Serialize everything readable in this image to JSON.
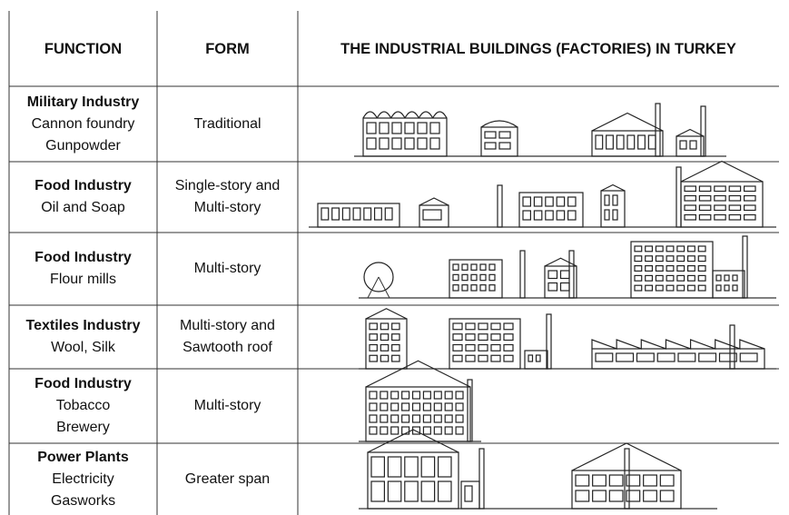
{
  "header": {
    "function": "FUNCTION",
    "form": "FORM",
    "buildings": "THE INDUSTRIAL BUILDINGS (FACTORIES) IN TURKEY"
  },
  "rows": [
    {
      "function": [
        "Military Industry",
        "Cannon foundry",
        "Gunpowder"
      ],
      "form": [
        "Traditional"
      ]
    },
    {
      "function": [
        "Food Industry",
        "Oil and Soap"
      ],
      "form": [
        "Single-story and",
        "Multi-story"
      ]
    },
    {
      "function": [
        "Food Industry",
        "Flour mills"
      ],
      "form": [
        "Multi-story"
      ]
    },
    {
      "function": [
        "Textiles Industry",
        "Wool, Silk"
      ],
      "form": [
        "Multi-story and",
        "Sawtooth roof"
      ]
    },
    {
      "function": [
        "Food Industry",
        "Tobacco",
        "Brewery"
      ],
      "form": [
        "Multi-story"
      ]
    },
    {
      "function": [
        "Power Plants",
        "Electricity",
        "Gasworks"
      ],
      "form": [
        "Greater span"
      ]
    }
  ]
}
